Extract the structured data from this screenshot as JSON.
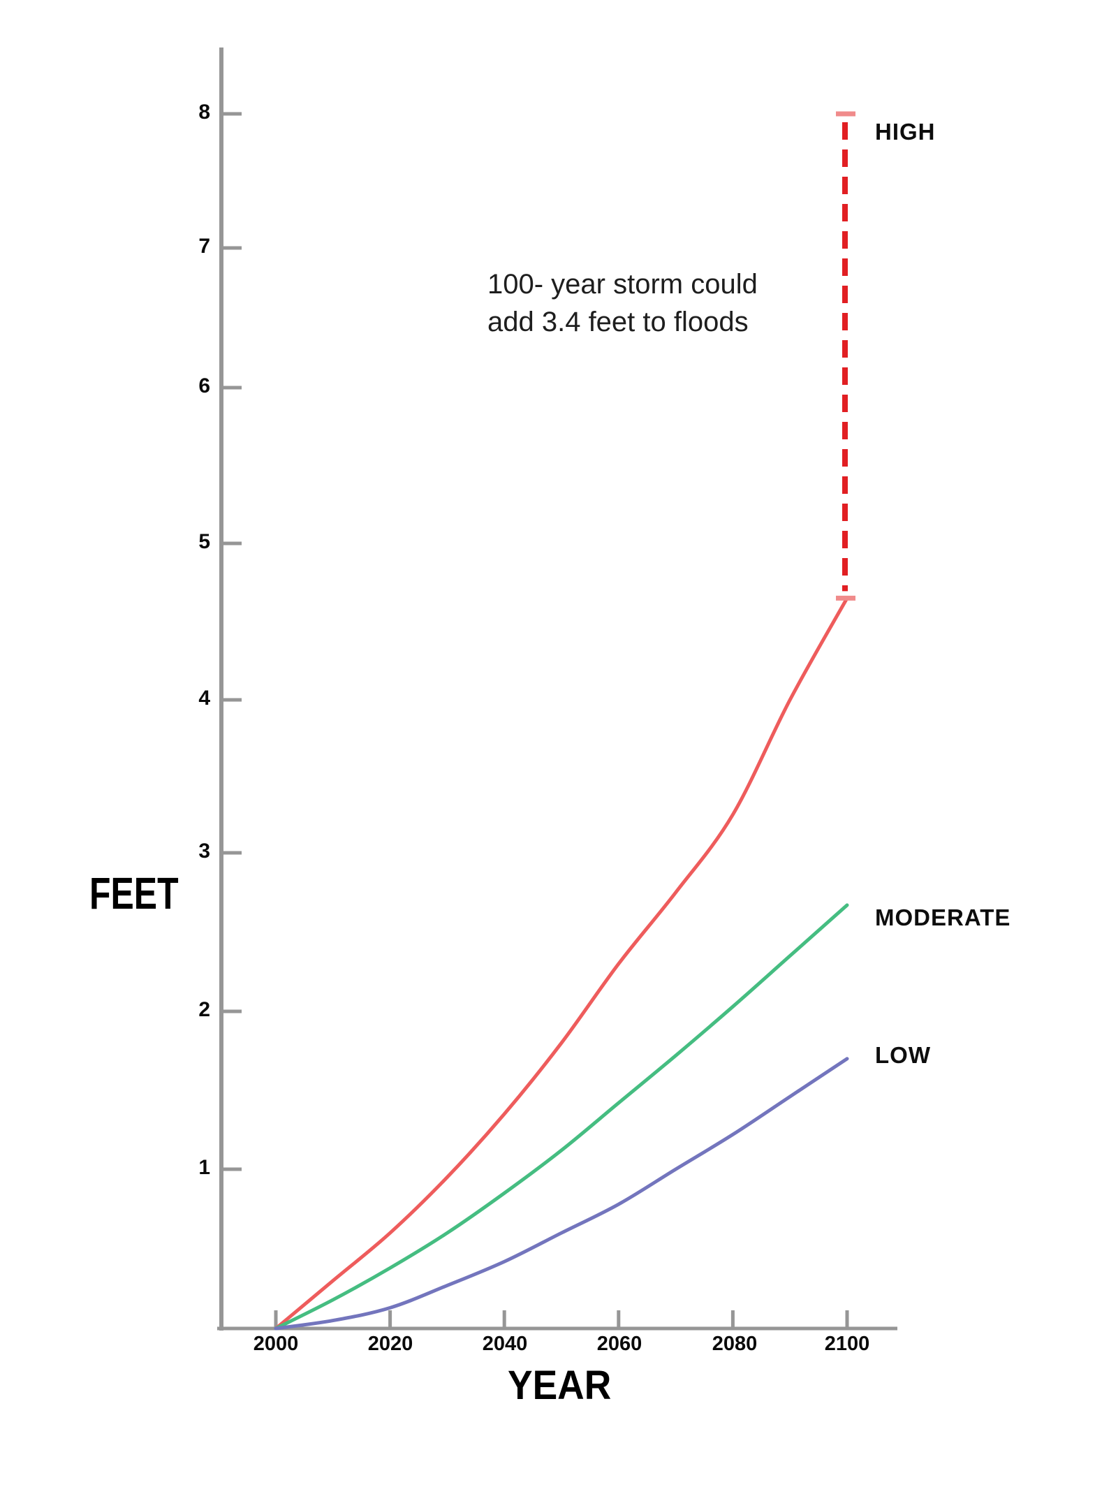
{
  "chart_data": {
    "type": "line",
    "title": "",
    "ylabel": "FEET",
    "xlabel": "YEAR",
    "x": [
      2000,
      2010,
      2020,
      2030,
      2040,
      2050,
      2060,
      2070,
      2080,
      2090,
      2100
    ],
    "series": [
      {
        "name": "HIGH",
        "color": "#ee5c5c",
        "values": [
          0,
          0.3,
          0.6,
          0.95,
          1.35,
          1.8,
          2.3,
          2.75,
          3.25,
          4.0,
          4.65
        ]
      },
      {
        "name": "MODERATE",
        "color": "#45bd81",
        "values": [
          0,
          0.18,
          0.38,
          0.6,
          0.85,
          1.12,
          1.42,
          1.72,
          2.03,
          2.35,
          2.67
        ]
      },
      {
        "name": "LOW",
        "color": "#7375bd",
        "values": [
          0,
          0.05,
          0.13,
          0.27,
          0.42,
          0.6,
          0.78,
          1.0,
          1.22,
          1.46,
          1.7
        ]
      }
    ],
    "x_ticks": [
      "2000",
      "2020",
      "2040",
      "2060",
      "2080",
      "2100"
    ],
    "y_ticks": [
      "1",
      "2",
      "3",
      "4",
      "5",
      "6",
      "7",
      "8"
    ],
    "xlim": [
      1990,
      2110
    ],
    "ylim": [
      0,
      8.6
    ],
    "grid": "off",
    "legend_position": "right-of-line-ends",
    "annotation": "100- year storm could\nadd 3.4 feet to floods",
    "storm_surge": {
      "at_year": 2100,
      "from_feet": 4.65,
      "to_feet": 8,
      "added_feet": 3.4,
      "dash_color": "#e11f23",
      "cap_color": "#f08b8b"
    },
    "axis_color": "#969696",
    "text_color": "#0a0a0a"
  }
}
